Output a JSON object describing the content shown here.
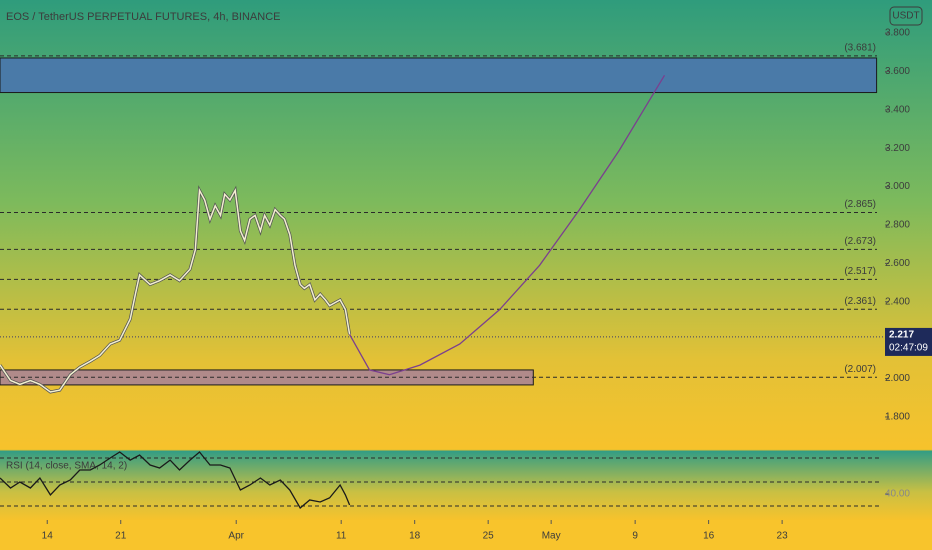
{
  "header": {
    "title": "EOS / TetherUS PERPETUAL FUTURES, 4h, BINANCE",
    "currency": "USDT"
  },
  "chart_data": {
    "type": "line",
    "color": "#f3efd0",
    "x": [
      9.5,
      10.5,
      11.4,
      12.4,
      13.3,
      14.3,
      15.2,
      16.2,
      17.1,
      18.1,
      19.0,
      20.0,
      20.9,
      21.9,
      22.4,
      22.8,
      23.8,
      24.7,
      25.7,
      26.6,
      27.6,
      28.1,
      28.5,
      29.0,
      29.5,
      30.0,
      30.5,
      30.9,
      31.4,
      31.9,
      32.4,
      32.8,
      33.3,
      33.8,
      34.3,
      34.7,
      35.2,
      35.7,
      36.2,
      36.6,
      37.1,
      37.6,
      38.1,
      38.5,
      39.0,
      39.5,
      40.0,
      40.5,
      40.9,
      41.9,
      42.4,
      42.8
    ],
    "values": [
      2.07,
      1.99,
      1.97,
      1.99,
      1.97,
      1.93,
      1.94,
      2.02,
      2.06,
      2.09,
      2.12,
      2.18,
      2.2,
      2.31,
      2.44,
      2.54,
      2.49,
      2.51,
      2.54,
      2.51,
      2.57,
      2.67,
      2.98,
      2.93,
      2.83,
      2.9,
      2.85,
      2.96,
      2.93,
      2.98,
      2.77,
      2.72,
      2.83,
      2.85,
      2.77,
      2.85,
      2.8,
      2.88,
      2.85,
      2.83,
      2.75,
      2.59,
      2.49,
      2.47,
      2.49,
      2.41,
      2.44,
      2.41,
      2.38,
      2.41,
      2.36,
      2.23
    ],
    "xlim": [
      9.5,
      93.8
    ],
    "xticks": [
      14,
      21,
      {
        "value": 32,
        "label": "Apr"
      },
      {
        "value": 42,
        "label": "11"
      },
      {
        "value": 49,
        "label": "18"
      },
      {
        "value": 56,
        "label": "25"
      },
      {
        "value": 62,
        "label": "May"
      },
      {
        "value": 70,
        "label": "9"
      },
      {
        "value": 77,
        "label": "16"
      },
      {
        "value": 84,
        "label": "23"
      }
    ],
    "ylim": [
      1.628,
      3.972
    ],
    "yticks": [
      {
        "value": 3.8,
        "label": "3.800"
      },
      {
        "value": 3.6,
        "label": "3.600"
      },
      {
        "value": 3.4,
        "label": "3.400"
      },
      {
        "value": 3.2,
        "label": "3.200"
      },
      {
        "value": 3.0,
        "label": "3.000"
      },
      {
        "value": 2.8,
        "label": "2.800"
      },
      {
        "value": 2.6,
        "label": "2.600"
      },
      {
        "value": 2.4,
        "label": "2.400"
      },
      {
        "value": 2.0,
        "label": "2.000"
      },
      {
        "value": 1.8,
        "label": "1.800"
      }
    ],
    "levels": [
      {
        "value": 3.681,
        "label": "(3.681)"
      },
      {
        "value": 2.865,
        "label": "(2.865)"
      },
      {
        "value": 2.673,
        "label": "(2.673)"
      },
      {
        "value": 2.517,
        "label": "(2.517)"
      },
      {
        "value": 2.361,
        "label": "(2.361)"
      },
      {
        "value": 2.007,
        "label": "(2.007)"
      }
    ],
    "zones": [
      {
        "top": 3.67,
        "bottom": 3.49,
        "end": 93.0,
        "color": "#4a7aa8"
      },
      {
        "top": 2.045,
        "bottom": 1.967,
        "end": 60.3,
        "color": "#b08a8a"
      }
    ],
    "last_price": 2.217,
    "countdown": "02:47:09",
    "projection": {
      "color": "#7b3f8f",
      "x": [
        42.8,
        44.7,
        46.6,
        49.5,
        53.3,
        57.1,
        60.9,
        64.7,
        68.5,
        72.8
      ],
      "values": [
        2.23,
        2.045,
        2.02,
        2.07,
        2.18,
        2.36,
        2.59,
        2.88,
        3.19,
        3.58
      ]
    },
    "rsi": {
      "label": "RSI (14, close, SMA, 14, 2)",
      "color": "#1a1a1a",
      "ylim": [
        18.3,
        76.7
      ],
      "levels": [
        70,
        50,
        30
      ],
      "yticks": [
        {
          "value": 40,
          "label": "40.00"
        }
      ],
      "x": [
        9.5,
        10.5,
        11.4,
        12.4,
        13.3,
        14.3,
        15.2,
        16.2,
        17.1,
        18.1,
        19.0,
        20.0,
        20.9,
        21.9,
        22.8,
        23.8,
        24.7,
        25.7,
        26.6,
        27.6,
        28.5,
        29.5,
        30.5,
        31.4,
        32.4,
        33.3,
        34.3,
        35.2,
        36.2,
        37.1,
        38.1,
        39.0,
        40.0,
        40.9,
        41.9,
        42.4,
        42.8
      ],
      "values": [
        53.3,
        45,
        50,
        45,
        53.3,
        39.2,
        47.5,
        51.7,
        60,
        60,
        64.2,
        70,
        75,
        68.3,
        72.5,
        64.2,
        61.7,
        68.3,
        60,
        68.3,
        75,
        64.2,
        64.2,
        61.7,
        43.3,
        47.5,
        53.3,
        47.5,
        51.7,
        43.3,
        28.3,
        35,
        33.3,
        36.7,
        47.5,
        39.2,
        30.8
      ]
    }
  }
}
